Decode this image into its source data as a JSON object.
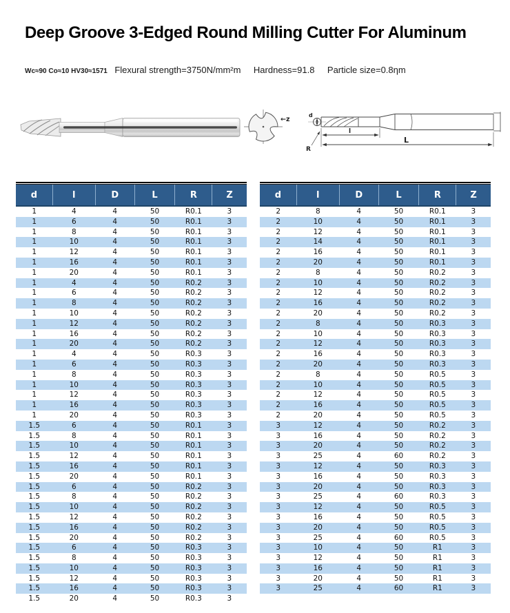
{
  "header": {
    "title": "Deep Groove 3-Edged Round Milling Cutter For Aluminum",
    "specs_material": "Wc≈90 Co≈10 HV30≈1571",
    "specs_flexural": "Flexural strength=3750N/mm²m",
    "specs_hardness": "Hardness=91.8",
    "specs_particle": "Particle size=0.8ηm"
  },
  "diagram": {
    "z_label": "←z",
    "d_label": "d",
    "l_label": "l",
    "L_label": "L",
    "R_label": "R"
  },
  "colors": {
    "header_bg": "#2e5c8c",
    "header_text": "#ffffff",
    "stripe": "#bcd8f1",
    "rule": "#000000"
  },
  "tables": {
    "columns": [
      "d",
      "l",
      "D",
      "L",
      "R",
      "Z"
    ],
    "left_rows": [
      [
        "1",
        "4",
        "4",
        "50",
        "R0.1",
        "3"
      ],
      [
        "1",
        "6",
        "4",
        "50",
        "R0.1",
        "3"
      ],
      [
        "1",
        "8",
        "4",
        "50",
        "R0.1",
        "3"
      ],
      [
        "1",
        "10",
        "4",
        "50",
        "R0.1",
        "3"
      ],
      [
        "1",
        "12",
        "4",
        "50",
        "R0.1",
        "3"
      ],
      [
        "1",
        "16",
        "4",
        "50",
        "R0.1",
        "3"
      ],
      [
        "1",
        "20",
        "4",
        "50",
        "R0.1",
        "3"
      ],
      [
        "1",
        "4",
        "4",
        "50",
        "R0.2",
        "3"
      ],
      [
        "1",
        "6",
        "4",
        "50",
        "R0.2",
        "3"
      ],
      [
        "1",
        "8",
        "4",
        "50",
        "R0.2",
        "3"
      ],
      [
        "1",
        "10",
        "4",
        "50",
        "R0.2",
        "3"
      ],
      [
        "1",
        "12",
        "4",
        "50",
        "R0.2",
        "3"
      ],
      [
        "1",
        "16",
        "4",
        "50",
        "R0.2",
        "3"
      ],
      [
        "1",
        "20",
        "4",
        "50",
        "R0.2",
        "3"
      ],
      [
        "1",
        "4",
        "4",
        "50",
        "R0.3",
        "3"
      ],
      [
        "1",
        "6",
        "4",
        "50",
        "R0.3",
        "3"
      ],
      [
        "1",
        "8",
        "4",
        "50",
        "R0.3",
        "3"
      ],
      [
        "1",
        "10",
        "4",
        "50",
        "R0.3",
        "3"
      ],
      [
        "1",
        "12",
        "4",
        "50",
        "R0.3",
        "3"
      ],
      [
        "1",
        "16",
        "4",
        "50",
        "R0.3",
        "3"
      ],
      [
        "1",
        "20",
        "4",
        "50",
        "R0.3",
        "3"
      ],
      [
        "1.5",
        "6",
        "4",
        "50",
        "R0.1",
        "3"
      ],
      [
        "1.5",
        "8",
        "4",
        "50",
        "R0.1",
        "3"
      ],
      [
        "1.5",
        "10",
        "4",
        "50",
        "R0.1",
        "3"
      ],
      [
        "1.5",
        "12",
        "4",
        "50",
        "R0.1",
        "3"
      ],
      [
        "1.5",
        "16",
        "4",
        "50",
        "R0.1",
        "3"
      ],
      [
        "1.5",
        "20",
        "4",
        "50",
        "R0.1",
        "3"
      ],
      [
        "1.5",
        "6",
        "4",
        "50",
        "R0.2",
        "3"
      ],
      [
        "1.5",
        "8",
        "4",
        "50",
        "R0.2",
        "3"
      ],
      [
        "1.5",
        "10",
        "4",
        "50",
        "R0.2",
        "3"
      ],
      [
        "1.5",
        "12",
        "4",
        "50",
        "R0.2",
        "3"
      ],
      [
        "1.5",
        "16",
        "4",
        "50",
        "R0.2",
        "3"
      ],
      [
        "1.5",
        "20",
        "4",
        "50",
        "R0.2",
        "3"
      ],
      [
        "1.5",
        "6",
        "4",
        "50",
        "R0.3",
        "3"
      ],
      [
        "1.5",
        "8",
        "4",
        "50",
        "R0.3",
        "3"
      ],
      [
        "1.5",
        "10",
        "4",
        "50",
        "R0.3",
        "3"
      ],
      [
        "1.5",
        "12",
        "4",
        "50",
        "R0.3",
        "3"
      ],
      [
        "1.5",
        "16",
        "4",
        "50",
        "R0.3",
        "3"
      ],
      [
        "1.5",
        "20",
        "4",
        "50",
        "R0.3",
        "3"
      ]
    ],
    "right_rows": [
      [
        "2",
        "8",
        "4",
        "50",
        "R0.1",
        "3"
      ],
      [
        "2",
        "10",
        "4",
        "50",
        "R0.1",
        "3"
      ],
      [
        "2",
        "12",
        "4",
        "50",
        "R0.1",
        "3"
      ],
      [
        "2",
        "14",
        "4",
        "50",
        "R0.1",
        "3"
      ],
      [
        "2",
        "16",
        "4",
        "50",
        "R0.1",
        "3"
      ],
      [
        "2",
        "20",
        "4",
        "50",
        "R0.1",
        "3"
      ],
      [
        "2",
        "8",
        "4",
        "50",
        "R0.2",
        "3"
      ],
      [
        "2",
        "10",
        "4",
        "50",
        "R0.2",
        "3"
      ],
      [
        "2",
        "12",
        "4",
        "50",
        "R0.2",
        "3"
      ],
      [
        "2",
        "16",
        "4",
        "50",
        "R0.2",
        "3"
      ],
      [
        "2",
        "20",
        "4",
        "50",
        "R0.2",
        "3"
      ],
      [
        "2",
        "8",
        "4",
        "50",
        "R0.3",
        "3"
      ],
      [
        "2",
        "10",
        "4",
        "50",
        "R0.3",
        "3"
      ],
      [
        "2",
        "12",
        "4",
        "50",
        "R0.3",
        "3"
      ],
      [
        "2",
        "16",
        "4",
        "50",
        "R0.3",
        "3"
      ],
      [
        "2",
        "20",
        "4",
        "50",
        "R0.3",
        "3"
      ],
      [
        "2",
        "8",
        "4",
        "50",
        "R0.5",
        "3"
      ],
      [
        "2",
        "10",
        "4",
        "50",
        "R0.5",
        "3"
      ],
      [
        "2",
        "12",
        "4",
        "50",
        "R0.5",
        "3"
      ],
      [
        "2",
        "16",
        "4",
        "50",
        "R0.5",
        "3"
      ],
      [
        "2",
        "20",
        "4",
        "50",
        "R0.5",
        "3"
      ],
      [
        "3",
        "12",
        "4",
        "50",
        "R0.2",
        "3"
      ],
      [
        "3",
        "16",
        "4",
        "50",
        "R0.2",
        "3"
      ],
      [
        "3",
        "20",
        "4",
        "50",
        "R0.2",
        "3"
      ],
      [
        "3",
        "25",
        "4",
        "60",
        "R0.2",
        "3"
      ],
      [
        "3",
        "12",
        "4",
        "50",
        "R0.3",
        "3"
      ],
      [
        "3",
        "16",
        "4",
        "50",
        "R0.3",
        "3"
      ],
      [
        "3",
        "20",
        "4",
        "50",
        "R0.3",
        "3"
      ],
      [
        "3",
        "25",
        "4",
        "60",
        "R0.3",
        "3"
      ],
      [
        "3",
        "12",
        "4",
        "50",
        "R0.5",
        "3"
      ],
      [
        "3",
        "16",
        "4",
        "50",
        "R0.5",
        "3"
      ],
      [
        "3",
        "20",
        "4",
        "50",
        "R0.5",
        "3"
      ],
      [
        "3",
        "25",
        "4",
        "60",
        "R0.5",
        "3"
      ],
      [
        "3",
        "10",
        "4",
        "50",
        "R1",
        "3"
      ],
      [
        "3",
        "12",
        "4",
        "50",
        "R1",
        "3"
      ],
      [
        "3",
        "16",
        "4",
        "50",
        "R1",
        "3"
      ],
      [
        "3",
        "20",
        "4",
        "50",
        "R1",
        "3"
      ],
      [
        "3",
        "25",
        "4",
        "60",
        "R1",
        "3"
      ]
    ]
  }
}
